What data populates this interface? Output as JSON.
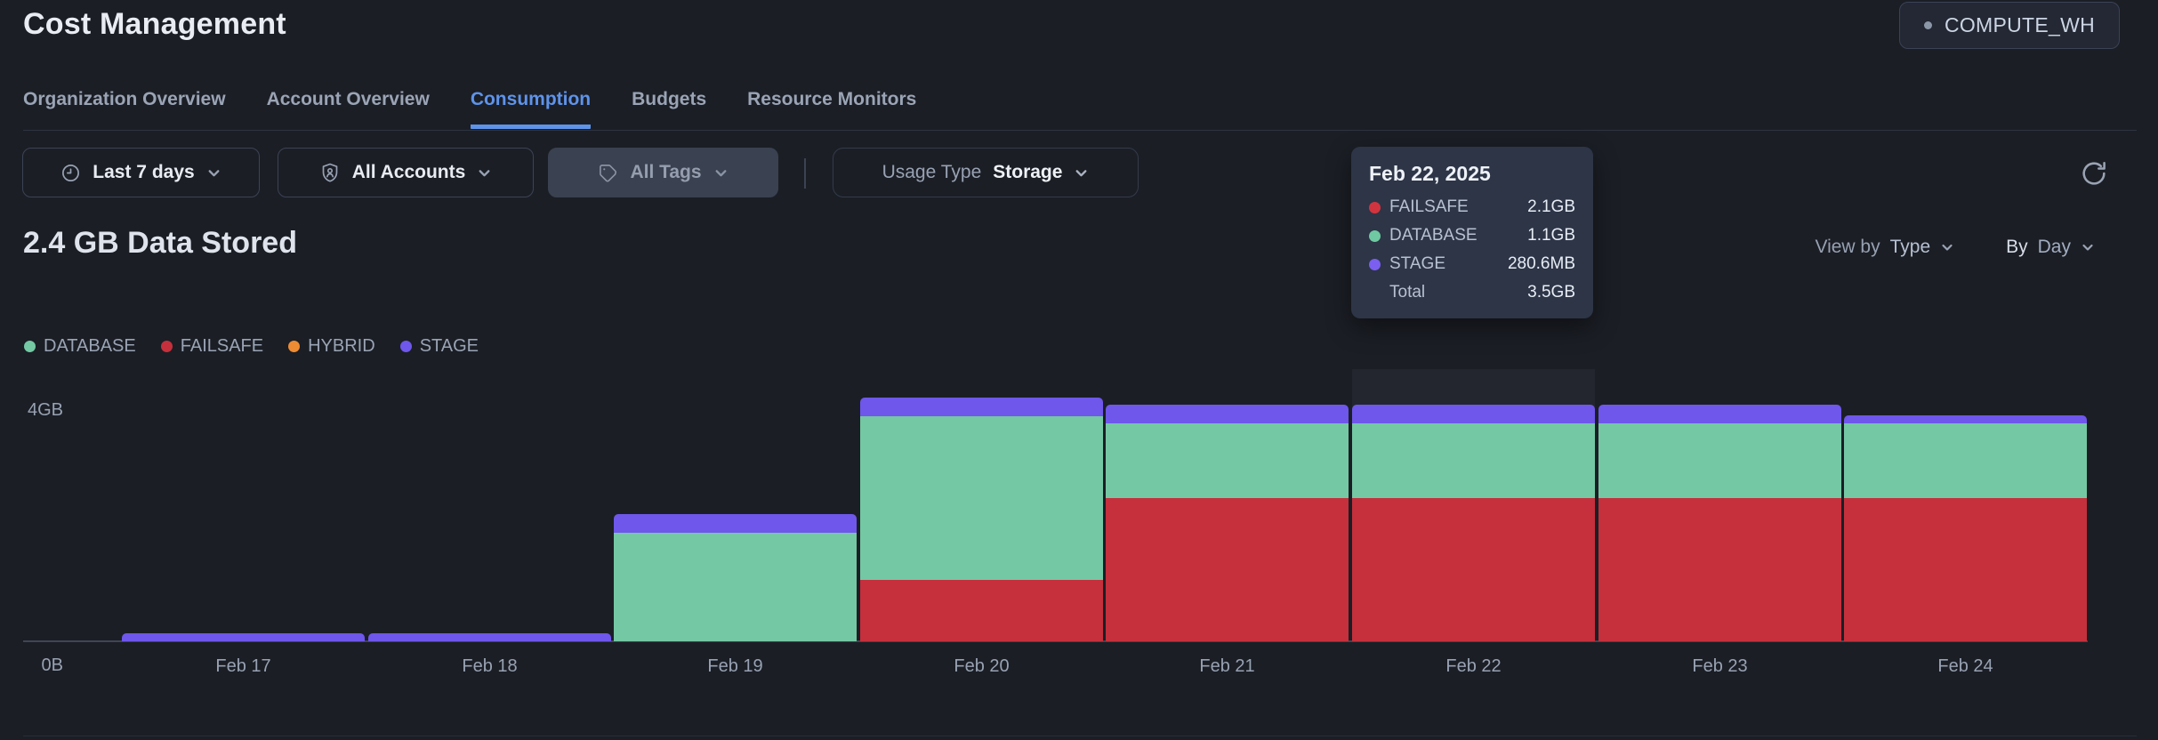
{
  "header": {
    "title": "Cost Management",
    "warehouse_badge": "COMPUTE_WH"
  },
  "tabs": {
    "items": [
      {
        "label": "Organization Overview",
        "active": false
      },
      {
        "label": "Account Overview",
        "active": false
      },
      {
        "label": "Consumption",
        "active": true
      },
      {
        "label": "Budgets",
        "active": false
      },
      {
        "label": "Resource Monitors",
        "active": false
      }
    ]
  },
  "filters": {
    "time_range": {
      "label": "Last 7 days"
    },
    "accounts": {
      "label": "All Accounts"
    },
    "tags": {
      "label": "All Tags"
    },
    "usage_type": {
      "label": "Usage Type",
      "value": "Storage"
    }
  },
  "icons": {
    "time_range": "clock-icon",
    "accounts": "shield-person-icon",
    "tags": "tag-icon",
    "dropdown": "chevron-down-icon",
    "refresh": "refresh-icon",
    "badge_dot": "status-dot"
  },
  "summary": {
    "heading": "2.4 GB Data Stored"
  },
  "view_controls": {
    "view_by_label": "View by",
    "view_by_value": "Type",
    "by_label": "By",
    "by_value": "Day"
  },
  "tooltip": {
    "title": "Feb 22, 2025",
    "rows": [
      {
        "name": "FAILSAFE",
        "value": "2.1GB",
        "color": "#d2343f"
      },
      {
        "name": "DATABASE",
        "value": "1.1GB",
        "color": "#6fc9a2"
      },
      {
        "name": "STAGE",
        "value": "280.6MB",
        "color": "#7a5ff0"
      }
    ],
    "total_label": "Total",
    "total_value": "3.5GB"
  },
  "chart_data": {
    "type": "bar",
    "stacked": true,
    "title": "2.4 GB Data Stored",
    "categories": [
      "Feb 17",
      "Feb 18",
      "Feb 19",
      "Feb 20",
      "Feb 21",
      "Feb 22",
      "Feb 23",
      "Feb 24"
    ],
    "series": [
      {
        "name": "DATABASE",
        "color": "#74c8a4",
        "values": [
          0,
          0,
          1.6,
          2.4,
          1.1,
          1.1,
          1.1,
          1.1
        ]
      },
      {
        "name": "FAILSAFE",
        "color": "#c5303c",
        "values": [
          0,
          0,
          0,
          0.9,
          2.1,
          2.1,
          2.1,
          2.1
        ]
      },
      {
        "name": "HYBRID",
        "color": "#ee8c33",
        "values": [
          0,
          0,
          0,
          0,
          0,
          0,
          0,
          0
        ]
      },
      {
        "name": "STAGE",
        "color": "#6e57ea",
        "values": [
          0.12,
          0.12,
          0.28,
          0.28,
          0.28,
          0.28,
          0.28,
          0.12
        ]
      }
    ],
    "stack_order": [
      "FAILSAFE",
      "DATABASE",
      "HYBRID",
      "STAGE"
    ],
    "unit": "GB",
    "ylim": [
      0,
      4
    ],
    "y_axis_labels": {
      "top": "4GB",
      "bottom": "0B"
    },
    "legend_position": "top-left",
    "grid": false,
    "highlighted_category": "Feb 22"
  }
}
